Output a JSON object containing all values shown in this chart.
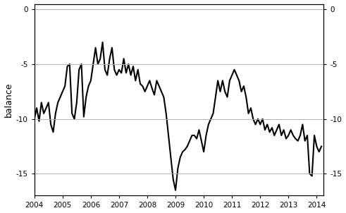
{
  "title": "",
  "ylabel": "balance",
  "xlim": [
    2004.0,
    2014.25
  ],
  "ylim": [
    -17.0,
    0.5
  ],
  "yticks": [
    0,
    -5,
    -10,
    -15
  ],
  "xticks": [
    2004,
    2005,
    2006,
    2007,
    2008,
    2009,
    2010,
    2011,
    2012,
    2013,
    2014
  ],
  "line_color": "#000000",
  "line_width": 1.5,
  "grid_color": "#b0b0b0",
  "bg_color": "#ffffff",
  "data": [
    [
      2004.0,
      -10.0
    ],
    [
      2004.083,
      -9.0
    ],
    [
      2004.167,
      -10.2
    ],
    [
      2004.25,
      -8.5
    ],
    [
      2004.333,
      -9.5
    ],
    [
      2004.417,
      -9.0
    ],
    [
      2004.5,
      -8.5
    ],
    [
      2004.583,
      -10.5
    ],
    [
      2004.667,
      -11.2
    ],
    [
      2004.75,
      -9.5
    ],
    [
      2004.833,
      -8.5
    ],
    [
      2004.917,
      -8.0
    ],
    [
      2005.0,
      -7.5
    ],
    [
      2005.083,
      -7.0
    ],
    [
      2005.167,
      -5.2
    ],
    [
      2005.25,
      -5.0
    ],
    [
      2005.333,
      -9.5
    ],
    [
      2005.417,
      -10.0
    ],
    [
      2005.5,
      -8.5
    ],
    [
      2005.583,
      -5.5
    ],
    [
      2005.667,
      -5.0
    ],
    [
      2005.75,
      -9.8
    ],
    [
      2005.833,
      -8.0
    ],
    [
      2005.917,
      -7.0
    ],
    [
      2006.0,
      -6.5
    ],
    [
      2006.083,
      -5.0
    ],
    [
      2006.167,
      -3.5
    ],
    [
      2006.25,
      -5.0
    ],
    [
      2006.333,
      -4.5
    ],
    [
      2006.417,
      -3.0
    ],
    [
      2006.5,
      -5.5
    ],
    [
      2006.583,
      -6.0
    ],
    [
      2006.667,
      -4.5
    ],
    [
      2006.75,
      -3.5
    ],
    [
      2006.833,
      -5.5
    ],
    [
      2006.917,
      -6.0
    ],
    [
      2007.0,
      -5.5
    ],
    [
      2007.083,
      -5.8
    ],
    [
      2007.167,
      -4.5
    ],
    [
      2007.25,
      -5.8
    ],
    [
      2007.333,
      -5.0
    ],
    [
      2007.417,
      -6.0
    ],
    [
      2007.5,
      -5.2
    ],
    [
      2007.583,
      -6.5
    ],
    [
      2007.667,
      -5.5
    ],
    [
      2007.75,
      -6.8
    ],
    [
      2007.833,
      -7.0
    ],
    [
      2007.917,
      -7.5
    ],
    [
      2008.0,
      -7.0
    ],
    [
      2008.083,
      -6.5
    ],
    [
      2008.167,
      -7.2
    ],
    [
      2008.25,
      -7.8
    ],
    [
      2008.333,
      -6.5
    ],
    [
      2008.417,
      -7.0
    ],
    [
      2008.5,
      -7.5
    ],
    [
      2008.583,
      -8.0
    ],
    [
      2008.667,
      -9.5
    ],
    [
      2008.75,
      -11.5
    ],
    [
      2008.833,
      -13.5
    ],
    [
      2008.917,
      -15.5
    ],
    [
      2009.0,
      -16.5
    ],
    [
      2009.083,
      -14.5
    ],
    [
      2009.167,
      -13.5
    ],
    [
      2009.25,
      -13.0
    ],
    [
      2009.333,
      -12.8
    ],
    [
      2009.417,
      -12.5
    ],
    [
      2009.5,
      -12.0
    ],
    [
      2009.583,
      -11.5
    ],
    [
      2009.667,
      -11.5
    ],
    [
      2009.75,
      -11.8
    ],
    [
      2009.833,
      -11.0
    ],
    [
      2009.917,
      -12.0
    ],
    [
      2010.0,
      -13.0
    ],
    [
      2010.083,
      -11.5
    ],
    [
      2010.167,
      -10.5
    ],
    [
      2010.25,
      -10.0
    ],
    [
      2010.333,
      -9.5
    ],
    [
      2010.417,
      -8.0
    ],
    [
      2010.5,
      -6.5
    ],
    [
      2010.583,
      -7.5
    ],
    [
      2010.667,
      -6.5
    ],
    [
      2010.75,
      -7.5
    ],
    [
      2010.833,
      -8.0
    ],
    [
      2010.917,
      -6.5
    ],
    [
      2011.0,
      -6.0
    ],
    [
      2011.083,
      -5.5
    ],
    [
      2011.167,
      -6.0
    ],
    [
      2011.25,
      -6.5
    ],
    [
      2011.333,
      -7.5
    ],
    [
      2011.417,
      -7.0
    ],
    [
      2011.5,
      -8.0
    ],
    [
      2011.583,
      -9.5
    ],
    [
      2011.667,
      -9.0
    ],
    [
      2011.75,
      -10.0
    ],
    [
      2011.833,
      -10.5
    ],
    [
      2011.917,
      -10.0
    ],
    [
      2012.0,
      -10.5
    ],
    [
      2012.083,
      -10.0
    ],
    [
      2012.167,
      -11.0
    ],
    [
      2012.25,
      -10.5
    ],
    [
      2012.333,
      -11.2
    ],
    [
      2012.417,
      -10.8
    ],
    [
      2012.5,
      -11.5
    ],
    [
      2012.583,
      -11.0
    ],
    [
      2012.667,
      -10.5
    ],
    [
      2012.75,
      -11.5
    ],
    [
      2012.833,
      -11.0
    ],
    [
      2012.917,
      -11.8
    ],
    [
      2013.0,
      -11.5
    ],
    [
      2013.083,
      -11.0
    ],
    [
      2013.167,
      -11.5
    ],
    [
      2013.25,
      -11.8
    ],
    [
      2013.333,
      -12.0
    ],
    [
      2013.417,
      -11.5
    ],
    [
      2013.5,
      -10.5
    ],
    [
      2013.583,
      -12.0
    ],
    [
      2013.667,
      -11.5
    ],
    [
      2013.75,
      -15.0
    ],
    [
      2013.833,
      -15.2
    ],
    [
      2013.917,
      -11.5
    ],
    [
      2014.0,
      -12.5
    ],
    [
      2014.083,
      -13.0
    ],
    [
      2014.167,
      -12.5
    ]
  ]
}
